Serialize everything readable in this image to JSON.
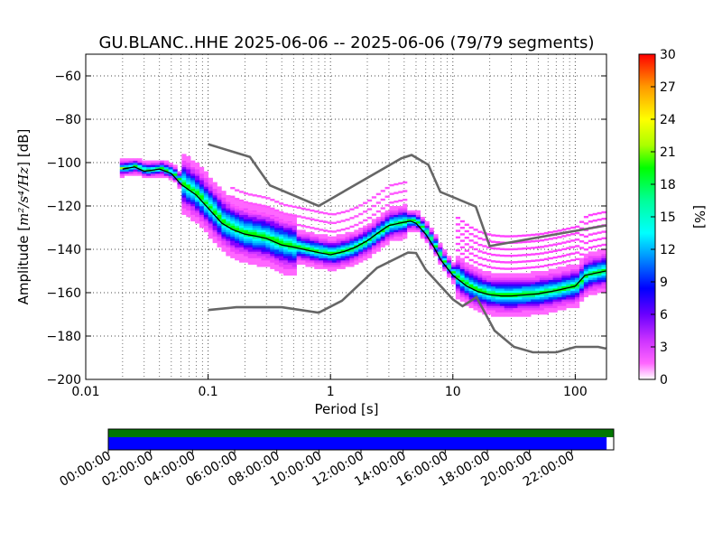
{
  "chart_data": {
    "type": "heatmap",
    "title": "GU.BLANC..HHE   2025-06-06 -- 2025-06-06  (79/79 segments)",
    "xlabel": "Period [s]",
    "ylabel_prefix": "Amplitude [",
    "ylabel_units": "m²/s⁴/Hz",
    "ylabel_suffix": "] [dB]",
    "xscale": "log",
    "xlim": [
      0.01,
      180
    ],
    "ylim": [
      -200,
      -50
    ],
    "x_ticks": [
      0.01,
      0.1,
      1,
      10,
      100
    ],
    "x_tick_labels": [
      "0.01",
      "0.1",
      "1",
      "10",
      "100"
    ],
    "y_ticks": [
      -200,
      -180,
      -160,
      -140,
      -120,
      -100,
      -80,
      -60
    ],
    "y_tick_labels": [
      "−200",
      "−180",
      "−160",
      "−140",
      "−120",
      "−100",
      "−80",
      "−60"
    ],
    "grid": true,
    "noise_model_high": [
      [
        0.1,
        -91.5
      ],
      [
        0.22,
        -97.4
      ],
      [
        0.32,
        -110.5
      ],
      [
        0.8,
        -120
      ],
      [
        3.8,
        -98
      ],
      [
        4.6,
        -96.5
      ],
      [
        6.3,
        -101
      ],
      [
        7.9,
        -113.5
      ],
      [
        15.4,
        -120.3
      ],
      [
        20,
        -138.5
      ],
      [
        178,
        -129
      ]
    ],
    "noise_model_low": [
      [
        0.1,
        -168
      ],
      [
        0.17,
        -166.7
      ],
      [
        0.4,
        -166.7
      ],
      [
        0.8,
        -169.2
      ],
      [
        1.24,
        -163.7
      ],
      [
        2.4,
        -148.6
      ],
      [
        4.3,
        -141.5
      ],
      [
        5,
        -141.7
      ],
      [
        6,
        -149.4
      ],
      [
        10,
        -163.1
      ],
      [
        12,
        -166.2
      ],
      [
        15.6,
        -162.1
      ],
      [
        21.9,
        -177.5
      ],
      [
        31.6,
        -185
      ],
      [
        45,
        -187.5
      ],
      [
        70,
        -187.5
      ],
      [
        101,
        -185
      ],
      [
        154,
        -185
      ],
      [
        178,
        -185.8
      ]
    ],
    "mode_curve": [
      [
        0.02,
        -103
      ],
      [
        0.025,
        -102
      ],
      [
        0.03,
        -104
      ],
      [
        0.035,
        -103.5
      ],
      [
        0.04,
        -103
      ],
      [
        0.05,
        -105
      ],
      [
        0.06,
        -110
      ],
      [
        0.08,
        -115
      ],
      [
        0.1,
        -121
      ],
      [
        0.13,
        -128
      ],
      [
        0.16,
        -131
      ],
      [
        0.2,
        -133
      ],
      [
        0.25,
        -134
      ],
      [
        0.3,
        -135
      ],
      [
        0.4,
        -138
      ],
      [
        0.5,
        -139
      ],
      [
        0.6,
        -140
      ],
      [
        0.8,
        -141.5
      ],
      [
        1,
        -142.5
      ],
      [
        1.3,
        -141
      ],
      [
        1.6,
        -139
      ],
      [
        2,
        -136
      ],
      [
        2.5,
        -132
      ],
      [
        3,
        -129
      ],
      [
        4,
        -127.5
      ],
      [
        4.5,
        -127
      ],
      [
        5,
        -128
      ],
      [
        6,
        -133
      ],
      [
        7,
        -139
      ],
      [
        8,
        -145
      ],
      [
        10,
        -152
      ],
      [
        13,
        -157
      ],
      [
        16,
        -159.5
      ],
      [
        20,
        -161
      ],
      [
        25,
        -161.5
      ],
      [
        30,
        -161.5
      ],
      [
        40,
        -161
      ],
      [
        50,
        -160.5
      ],
      [
        70,
        -159
      ],
      [
        100,
        -157
      ],
      [
        120,
        -152
      ],
      [
        178,
        -150
      ]
    ],
    "colorbar": {
      "label": "[%]",
      "min": 0,
      "max": 30,
      "ticks": [
        0,
        3,
        6,
        9,
        12,
        15,
        18,
        21,
        24,
        27,
        30
      ],
      "tick_labels": [
        "0",
        "3",
        "6",
        "9",
        "12",
        "15",
        "18",
        "21",
        "24",
        "27",
        "30"
      ]
    },
    "timeline": {
      "tick_labels": [
        "00:00:00",
        "02:00:00",
        "04:00:00",
        "06:00:00",
        "08:00:00",
        "10:00:00",
        "12:00:00",
        "14:00:00",
        "16:00:00",
        "18:00:00",
        "20:00:00",
        "22:00:00"
      ],
      "data_fraction": 1.0,
      "psd_fraction": 0.986,
      "data_color": "#007700",
      "psd_color": "#0000ff"
    }
  }
}
